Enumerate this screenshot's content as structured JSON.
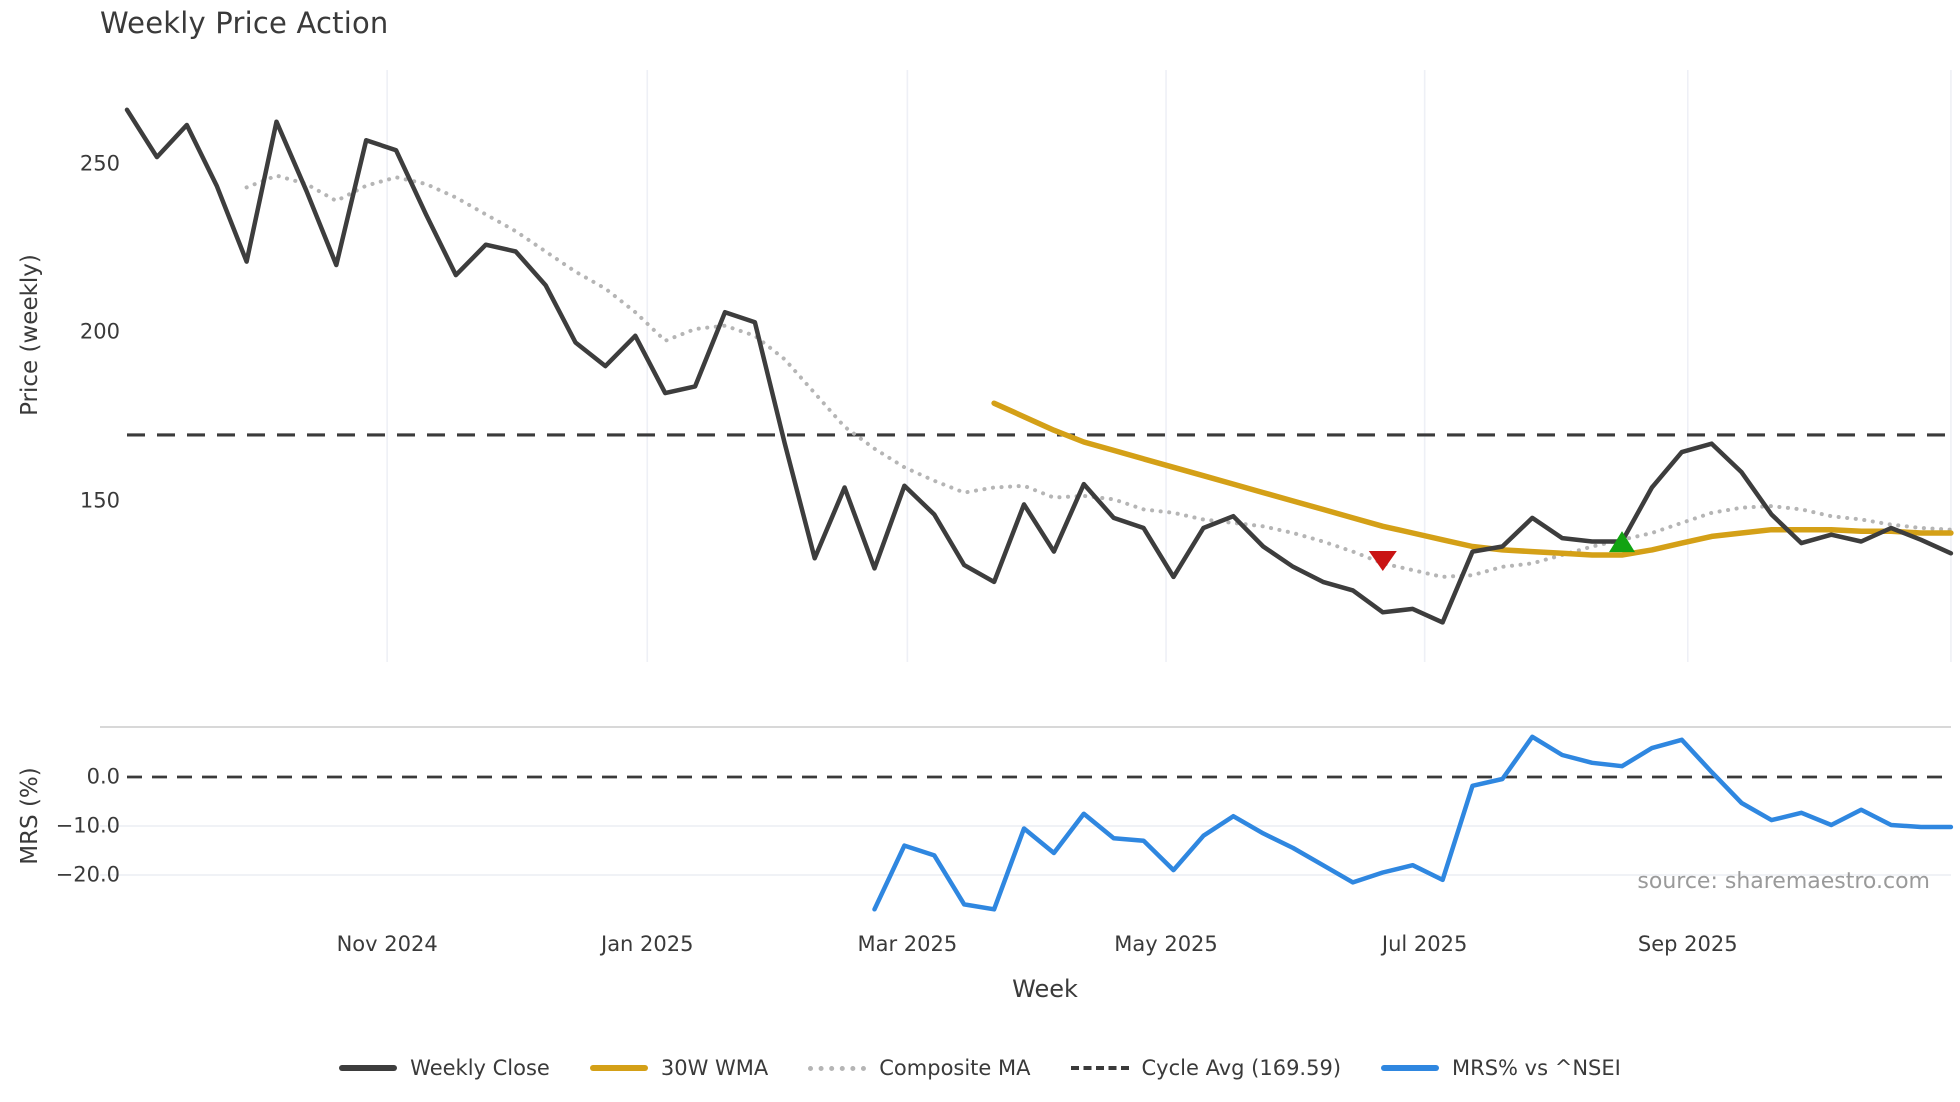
{
  "title": "Weekly Price Action",
  "source_text": "source: sharemaestro.com",
  "x_axis_label": "Week",
  "colors": {
    "weekly_close": "#3d3d3d",
    "wma_30w": "#d4a017",
    "composite_ma": "#b5b5b5",
    "cycle_avg": "#3a3a3a",
    "mrs_line": "#2f87e0",
    "sell_marker": "#c91414",
    "buy_marker": "#12a312",
    "gridline": "#eef0f6",
    "panel_separator": "#cccccc",
    "h_gridline": "#eceef4",
    "source_text": "#9a9a9a"
  },
  "legend": [
    {
      "label": "Weekly Close",
      "color": "#3d3d3d",
      "dash": "solid"
    },
    {
      "label": "30W WMA",
      "color": "#d4a017",
      "dash": "solid"
    },
    {
      "label": "Composite MA",
      "color": "#b5b5b5",
      "dash": "dotted"
    },
    {
      "label": "Cycle Avg (169.59)",
      "color": "#3a3a3a",
      "dash": "dashed"
    },
    {
      "label": "MRS% vs ^NSEI",
      "color": "#2f87e0",
      "dash": "solid"
    }
  ],
  "chart_data": {
    "type": "line",
    "title": "Weekly Price Action",
    "x": {
      "unit": "week index (weekly closes, ~Sep 2024 to ~Oct 2025)",
      "n_weeks": 62,
      "ticks": [
        {
          "label": "Nov 2024",
          "week": 8.7
        },
        {
          "label": "Jan 2025",
          "week": 17.4
        },
        {
          "label": "Mar 2025",
          "week": 26.1
        },
        {
          "label": "May 2025",
          "week": 34.75
        },
        {
          "label": "Jul 2025",
          "week": 43.4
        },
        {
          "label": "Sep 2025",
          "week": 52.2
        },
        {
          "label": "",
          "week": 61.0
        }
      ]
    },
    "legend_position": "bottom-center",
    "panels": [
      {
        "id": "price",
        "ylabel": "Price (weekly)",
        "ylim": [
          104,
          272
        ],
        "yticks": [
          {
            "label": "250",
            "value": 250
          },
          {
            "label": "200",
            "value": 200
          },
          {
            "label": "150",
            "value": 150
          }
        ],
        "grid": "vertical-only",
        "series": [
          {
            "name": "Weekly Close",
            "style": "solid",
            "color": "#3d3d3d",
            "width": 4.5,
            "start_week": 0,
            "values": [
              266,
              252,
              261.5,
              243.5,
              221,
              262.5,
              242,
              220,
              257,
              254,
              235,
              217,
              226,
              224,
              214,
              197,
              190,
              199,
              182,
              184,
              206,
              203,
              167,
              133,
              154,
              130,
              154.5,
              146,
              131,
              126,
              149,
              135,
              155,
              145,
              142,
              127.5,
              142,
              145.5,
              136.5,
              130.5,
              126,
              123.5,
              117,
              118,
              114,
              135,
              136.5,
              145,
              139,
              138,
              138,
              154,
              164.5,
              167,
              158.5,
              146,
              137.5,
              140,
              138,
              142,
              138.5,
              134.5
            ]
          },
          {
            "name": "30W WMA",
            "style": "solid",
            "color": "#d4a017",
            "width": 5.5,
            "start_week": 29,
            "values": [
              179,
              175,
              171,
              167.5,
              165,
              162.5,
              160,
              157.5,
              155,
              152.5,
              150,
              147.5,
              145,
              142.5,
              140.5,
              138.5,
              136.5,
              135.5,
              135,
              134.5,
              134,
              134,
              135.5,
              137.5,
              139.5,
              140.5,
              141.5,
              141.5,
              141.5,
              141,
              141,
              140.5,
              140.5
            ]
          },
          {
            "name": "Composite MA",
            "style": "dotted",
            "color": "#b5b5b5",
            "width": 4,
            "start_week": 4,
            "values": [
              243,
              246.5,
              244,
              239,
              243.5,
              246,
              244,
              240,
              235,
              230,
              224,
              218,
              213,
              206,
              197.5,
              201,
              202,
              199,
              192,
              182,
              172,
              165.5,
              160,
              156,
              152.5,
              154,
              154.5,
              151,
              151.5,
              150.5,
              147.5,
              146.5,
              144.5,
              143.5,
              142.5,
              140.5,
              138,
              135,
              131.5,
              129.5,
              127.5,
              128,
              130.5,
              131.5,
              134,
              136.5,
              138.5,
              140.5,
              143.5,
              146.5,
              148,
              148.5,
              147.5,
              145.5,
              144.5,
              143,
              142,
              141.5
            ]
          },
          {
            "name": "Cycle Avg",
            "style": "dashed",
            "color": "#3a3a3a",
            "width": 3.2,
            "constant": 169.59
          }
        ],
        "markers": [
          {
            "name": "sell-signal",
            "shape": "triangle-down",
            "color": "#c91414",
            "week": 42,
            "value": 132.5
          },
          {
            "name": "buy-signal",
            "shape": "triangle-up",
            "color": "#12a312",
            "week": 50,
            "value": 137.5
          }
        ]
      },
      {
        "id": "mrs",
        "ylabel": "MRS (%)",
        "ylim": [
          -29,
          9
        ],
        "yticks": [
          {
            "label": "0.0",
            "value": 0
          },
          {
            "label": "−10.0",
            "value": -10
          },
          {
            "label": "−20.0",
            "value": -20
          }
        ],
        "zero_line": 0,
        "series": [
          {
            "name": "MRS% vs ^NSEI",
            "style": "solid",
            "color": "#2f87e0",
            "width": 4.5,
            "start_week": 25,
            "values": [
              -27,
              -14,
              -16,
              -26,
              -27,
              -10.5,
              -15.5,
              -7.5,
              -12.5,
              -13,
              -19,
              -12,
              -8,
              -11.5,
              -14.5,
              -18,
              -21.5,
              -19.5,
              -18,
              -21,
              -1.8,
              -0.4,
              8.2,
              4.5,
              2.9,
              2.2,
              5.9,
              7.6,
              1,
              -5.3,
              -8.8,
              -7.3,
              -9.8,
              -6.7,
              -9.8,
              -10.2,
              -10.2
            ]
          }
        ]
      }
    ]
  }
}
